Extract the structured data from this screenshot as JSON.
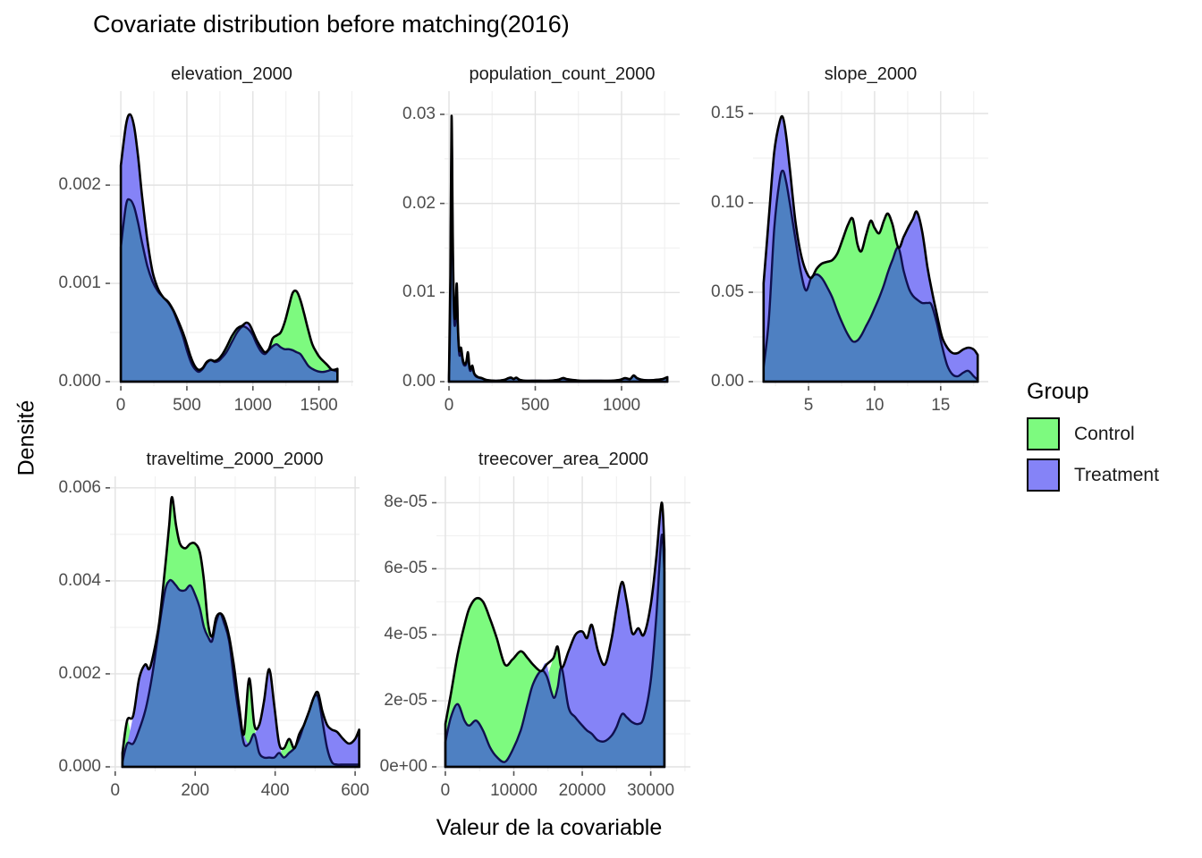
{
  "chart_data": {
    "type": "area",
    "subtype": "faceted-density",
    "title": "Covariate distribution before matching(2016)",
    "xlabel": "Valeur de la covariable",
    "ylabel": "Densité",
    "grid": "on",
    "legend": {
      "title": "Group",
      "position": "right",
      "entries": [
        {
          "label": "Control",
          "color": "#7DFA7F"
        },
        {
          "label": "Treatment",
          "color": "#8583F7"
        }
      ]
    },
    "colors": {
      "control_fill": "#7DFA7F",
      "treatment_fill": "#8583F7",
      "overlap_fill": "#4E80C2",
      "upper_outline": "#000000",
      "lower_outline": "#10104F",
      "grid_major": "#e2e2e2",
      "grid_minor": "#f1f1f1",
      "tick_text": "#4d4d4d",
      "tick_mark": "#555555"
    },
    "panels": [
      {
        "title": "elevation_2000",
        "xdomain": [
          -82,
          1760
        ],
        "ytop": 0.00292,
        "xticks": [
          {
            "v": 0,
            "label": "0"
          },
          {
            "v": 500,
            "label": "500"
          },
          {
            "v": 1000,
            "label": "1000"
          },
          {
            "v": 1500,
            "label": "1500"
          }
        ],
        "xminor": [
          250,
          750,
          1250,
          1750
        ],
        "yticks": [
          {
            "v": 0,
            "label": "0.000"
          },
          {
            "v": 0.001,
            "label": "0.001"
          },
          {
            "v": 0.002,
            "label": "0.002"
          }
        ],
        "yminor": [
          0.0005,
          0.0015,
          0.0025
        ],
        "x": [
          0,
          40,
          70,
          100,
          130,
          160,
          200,
          240,
          280,
          320,
          360,
          400,
          440,
          470,
          500,
          530,
          560,
          590,
          620,
          650,
          680,
          710,
          740,
          770,
          800,
          840,
          880,
          920,
          950,
          975,
          1000,
          1030,
          1060,
          1090,
          1120,
          1150,
          1180,
          1210,
          1240,
          1270,
          1300,
          1330,
          1360,
          1390,
          1420,
          1450,
          1480,
          1510,
          1540,
          1570,
          1600,
          1640
        ],
        "control": [
          0.00137,
          0.0018,
          0.00185,
          0.00178,
          0.00162,
          0.00142,
          0.00118,
          0.00102,
          0.00092,
          0.00086,
          0.00081,
          0.00071,
          0.00057,
          0.00046,
          0.00032,
          0.0002,
          0.00013,
          0.0001,
          0.00013,
          0.00019,
          0.00022,
          0.00021,
          0.00023,
          0.00028,
          0.00035,
          0.00046,
          0.00054,
          0.00056,
          0.00055,
          0.00052,
          0.00047,
          0.00038,
          0.00031,
          0.00028,
          0.00033,
          0.00044,
          0.00047,
          0.0005,
          0.0006,
          0.00075,
          0.0009,
          0.00092,
          0.00083,
          0.00068,
          0.00052,
          0.00038,
          0.0003,
          0.00024,
          0.0002,
          0.00016,
          0.00012,
          0.0001
        ],
        "treatment": [
          0.0022,
          0.00262,
          0.00272,
          0.0026,
          0.0023,
          0.0019,
          0.00145,
          0.00112,
          0.00095,
          0.00086,
          0.0008,
          0.00072,
          0.0006,
          0.0005,
          0.00038,
          0.00025,
          0.00016,
          0.00012,
          0.00014,
          0.0002,
          0.00022,
          0.0002,
          0.00021,
          0.00025,
          0.0003,
          0.0004,
          0.0005,
          0.00057,
          0.0006,
          0.00058,
          0.00051,
          0.00042,
          0.00035,
          0.0003,
          0.00032,
          0.00036,
          0.00038,
          0.00035,
          0.00033,
          0.00033,
          0.00032,
          0.0003,
          0.00028,
          0.00022,
          0.00016,
          0.00013,
          0.00011,
          0.0001,
          0.0001,
          0.00011,
          0.00012,
          0.00013
        ]
      },
      {
        "title": "population_count_2000",
        "xdomain": [
          -26,
          1337
        ],
        "ytop": 0.0322,
        "xticks": [
          {
            "v": 0,
            "label": "0"
          },
          {
            "v": 500,
            "label": "500"
          },
          {
            "v": 1000,
            "label": "1000"
          }
        ],
        "xminor": [
          250,
          750,
          1250
        ],
        "yticks": [
          {
            "v": 0,
            "label": "0.00"
          },
          {
            "v": 0.01,
            "label": "0.01"
          },
          {
            "v": 0.02,
            "label": "0.02"
          },
          {
            "v": 0.03,
            "label": "0.03"
          }
        ],
        "yminor": [
          0.005,
          0.015,
          0.025
        ],
        "x": [
          0,
          8,
          15,
          22,
          30,
          38,
          45,
          52,
          60,
          70,
          80,
          90,
          100,
          110,
          118,
          126,
          135,
          145,
          155,
          170,
          190,
          215,
          245,
          280,
          320,
          345,
          360,
          375,
          390,
          410,
          440,
          480,
          530,
          580,
          630,
          660,
          680,
          710,
          760,
          820,
          880,
          940,
          990,
          1020,
          1050,
          1070,
          1090,
          1120,
          1160,
          1200,
          1240,
          1265
        ],
        "control": [
          0.0006,
          0.012,
          0.0298,
          0.016,
          0.008,
          0.0075,
          0.011,
          0.006,
          0.0035,
          0.0038,
          0.0025,
          0.002,
          0.0022,
          0.0033,
          0.0018,
          0.0014,
          0.0018,
          0.001,
          0.0007,
          0.0005,
          0.0004,
          0.0002,
          0.00012,
          0.0001,
          0.0002,
          0.0004,
          0.00045,
          0.0003,
          0.00045,
          0.0002,
          0.0001,
          0.0001,
          0.0001,
          0.0001,
          0.0002,
          0.0004,
          0.0003,
          0.0002,
          0.0001,
          0.0001,
          0.0001,
          0.0001,
          0.0002,
          0.0004,
          0.0003,
          0.0007,
          0.0004,
          0.0002,
          0.00015,
          0.0002,
          0.0003,
          0.0005
        ],
        "treatment": [
          0.0004,
          0.009,
          0.0285,
          0.014,
          0.007,
          0.0068,
          0.0102,
          0.0055,
          0.003,
          0.0033,
          0.0022,
          0.0018,
          0.002,
          0.003,
          0.0015,
          0.0012,
          0.0016,
          0.0009,
          0.0006,
          0.00045,
          0.00035,
          0.0002,
          0.00012,
          0.0001,
          0.0002,
          0.00035,
          0.0004,
          0.00028,
          0.0004,
          0.0002,
          0.0001,
          0.0001,
          0.0001,
          0.0001,
          0.0002,
          0.00035,
          0.00028,
          0.0002,
          0.0001,
          0.0001,
          0.0001,
          0.0001,
          0.0002,
          0.00035,
          0.00028,
          0.00065,
          0.00035,
          0.0002,
          0.00015,
          0.0002,
          0.0003,
          0.00045
        ]
      },
      {
        "title": "slope_2000",
        "xdomain": [
          0.8,
          18.6
        ],
        "ytop": 0.1605,
        "xticks": [
          {
            "v": 5,
            "label": "5"
          },
          {
            "v": 10,
            "label": "10"
          },
          {
            "v": 15,
            "label": "15"
          }
        ],
        "xminor": [
          2.5,
          7.5,
          12.5,
          17.5
        ],
        "yticks": [
          {
            "v": 0,
            "label": "0.00"
          },
          {
            "v": 0.05,
            "label": "0.05"
          },
          {
            "v": 0.1,
            "label": "0.10"
          },
          {
            "v": 0.15,
            "label": "0.15"
          }
        ],
        "yminor": [
          0.025,
          0.075,
          0.125
        ],
        "x": [
          1.6,
          2.0,
          2.4,
          2.8,
          3.05,
          3.3,
          3.6,
          4.0,
          4.4,
          4.8,
          5.2,
          5.6,
          6.0,
          6.4,
          6.8,
          7.2,
          7.6,
          8.0,
          8.35,
          8.7,
          9.0,
          9.35,
          9.7,
          10.0,
          10.35,
          10.7,
          11.0,
          11.35,
          11.8,
          12.2,
          12.6,
          12.9,
          13.2,
          13.6,
          14.0,
          14.3,
          14.7,
          15.1,
          15.5,
          15.9,
          16.3,
          16.7,
          17.1,
          17.5,
          17.8
        ],
        "control": [
          0.008,
          0.035,
          0.085,
          0.112,
          0.118,
          0.112,
          0.099,
          0.08,
          0.062,
          0.051,
          0.058,
          0.063,
          0.066,
          0.067,
          0.068,
          0.072,
          0.08,
          0.088,
          0.091,
          0.077,
          0.073,
          0.082,
          0.09,
          0.086,
          0.083,
          0.09,
          0.094,
          0.088,
          0.075,
          0.062,
          0.052,
          0.048,
          0.046,
          0.044,
          0.044,
          0.043,
          0.033,
          0.02,
          0.009,
          0.004,
          0.003,
          0.005,
          0.006,
          0.003,
          0.001
        ],
        "treatment": [
          0.055,
          0.092,
          0.128,
          0.145,
          0.148,
          0.138,
          0.118,
          0.09,
          0.072,
          0.062,
          0.058,
          0.06,
          0.058,
          0.053,
          0.047,
          0.039,
          0.032,
          0.026,
          0.0225,
          0.023,
          0.026,
          0.031,
          0.036,
          0.041,
          0.047,
          0.054,
          0.061,
          0.068,
          0.075,
          0.081,
          0.087,
          0.091,
          0.095,
          0.084,
          0.064,
          0.052,
          0.038,
          0.025,
          0.019,
          0.016,
          0.016,
          0.018,
          0.019,
          0.018,
          0.015
        ]
      },
      {
        "title": "traveltime_2000_2000",
        "xdomain": [
          -13,
          611
        ],
        "ytop": 0.00617,
        "xticks": [
          {
            "v": 0,
            "label": "0"
          },
          {
            "v": 200,
            "label": "200"
          },
          {
            "v": 400,
            "label": "400"
          },
          {
            "v": 600,
            "label": "600"
          }
        ],
        "xminor": [
          100,
          300,
          500
        ],
        "yticks": [
          {
            "v": 0,
            "label": "0.000"
          },
          {
            "v": 0.002,
            "label": "0.002"
          },
          {
            "v": 0.004,
            "label": "0.004"
          },
          {
            "v": 0.006,
            "label": "0.006"
          }
        ],
        "yminor": [
          0.001,
          0.003,
          0.005
        ],
        "x": [
          18,
          30,
          45,
          60,
          75,
          85,
          95,
          110,
          125,
          135,
          142,
          152,
          162,
          175,
          188,
          200,
          212,
          222,
          232,
          242,
          252,
          262,
          272,
          285,
          298,
          310,
          322,
          335,
          348,
          360,
          372,
          385,
          398,
          410,
          422,
          435,
          448,
          460,
          472,
          485,
          497,
          507,
          518,
          530,
          542,
          555,
          570,
          585,
          600,
          610
        ],
        "control": [
          0.0003,
          0.001,
          0.0005,
          0.0008,
          0.0012,
          0.0016,
          0.0021,
          0.003,
          0.0043,
          0.0052,
          0.0058,
          0.0052,
          0.0048,
          0.0047,
          0.0048,
          0.0048,
          0.0046,
          0.004,
          0.0031,
          0.0027,
          0.0032,
          0.0033,
          0.0031,
          0.0027,
          0.0018,
          0.0011,
          0.0005,
          0.0019,
          0.0009,
          0.0003,
          0.0002,
          0.0002,
          0.0002,
          0.0003,
          0.0004,
          0.0006,
          0.0004,
          0.0006,
          0.0009,
          0.0012,
          0.0015,
          0.0016,
          0.001,
          0.0004,
          0.0001,
          5e-05,
          5e-05,
          5e-05,
          5e-05,
          5e-05
        ],
        "treatment": [
          0.0001,
          0.0005,
          0.0011,
          0.0019,
          0.0022,
          0.0021,
          0.0024,
          0.0031,
          0.0038,
          0.004,
          0.004,
          0.0039,
          0.0038,
          0.0038,
          0.0039,
          0.0037,
          0.0034,
          0.003,
          0.0028,
          0.0028,
          0.0031,
          0.0033,
          0.0032,
          0.0028,
          0.0021,
          0.0013,
          0.0007,
          0.0005,
          0.0007,
          0.0009,
          0.0014,
          0.0021,
          0.0013,
          0.0005,
          0.0002,
          0.0003,
          0.0004,
          0.0007,
          0.0009,
          0.0012,
          0.0015,
          0.0015,
          0.0012,
          0.0009,
          0.0008,
          0.00075,
          0.0006,
          0.0005,
          0.0006,
          0.0008
        ]
      },
      {
        "title": "treecover_area_2000",
        "xdomain": [
          -1300,
          35800
        ],
        "ytop": 8.69e-05,
        "xticks": [
          {
            "v": 0,
            "label": "0"
          },
          {
            "v": 10000,
            "label": "10000"
          },
          {
            "v": 20000,
            "label": "20000"
          },
          {
            "v": 30000,
            "label": "30000"
          }
        ],
        "xminor": [
          5000,
          15000,
          25000,
          35000
        ],
        "yticks": [
          {
            "v": 0,
            "label": "0e+00"
          },
          {
            "v": 2e-05,
            "label": "2e-05"
          },
          {
            "v": 4e-05,
            "label": "4e-05"
          },
          {
            "v": 6e-05,
            "label": "6e-05"
          },
          {
            "v": 8e-05,
            "label": "8e-05"
          }
        ],
        "yminor": [
          1e-05,
          3e-05,
          5e-05,
          7e-05
        ],
        "x": [
          0,
          800,
          1800,
          2800,
          3500,
          4500,
          5500,
          6500,
          7500,
          8700,
          9800,
          11000,
          12000,
          12800,
          13950,
          14800,
          15800,
          16400,
          17000,
          18000,
          19000,
          20000,
          20700,
          21400,
          22300,
          23300,
          24300,
          25000,
          25800,
          26500,
          27300,
          28200,
          29000,
          30000,
          30800,
          31600,
          32000
        ],
        "control": [
          1.3e-05,
          2.2e-05,
          3.4e-05,
          4.3e-05,
          4.8e-05,
          5.1e-05,
          5e-05,
          4.5e-05,
          3.9e-05,
          3.1e-05,
          3.25e-05,
          3.5e-05,
          3.3e-05,
          3.1e-05,
          2.9e-05,
          2.75e-05,
          3.3e-05,
          3.64e-05,
          3e-05,
          1.8e-05,
          1.5e-05,
          1.25e-05,
          1.1e-05,
          1e-05,
          8e-06,
          7.8e-06,
          9.5e-06,
          1.2e-05,
          1.6e-05,
          1.5e-05,
          1.35e-05,
          1.3e-05,
          1.5e-05,
          2.6e-05,
          4.5e-05,
          7e-05,
          5.9e-05
        ],
        "treatment": [
          7.5e-06,
          1.5e-05,
          1.9e-05,
          1.4e-05,
          1.25e-05,
          1.4e-05,
          1.1e-05,
          6e-06,
          3e-06,
          1.5e-06,
          5e-06,
          1.1e-05,
          1.9e-05,
          2.5e-05,
          2.9e-05,
          3.1e-05,
          2.1e-05,
          2.4e-05,
          3e-05,
          3.5e-05,
          4e-05,
          4.1e-05,
          3.9e-05,
          4.3e-05,
          3.5e-05,
          3.1e-05,
          3.9e-05,
          4.8e-05,
          5.6e-05,
          5e-05,
          4.05e-05,
          4.2e-05,
          4e-05,
          4.9e-05,
          6.3e-05,
          8e-05,
          6.6e-05
        ]
      }
    ]
  }
}
